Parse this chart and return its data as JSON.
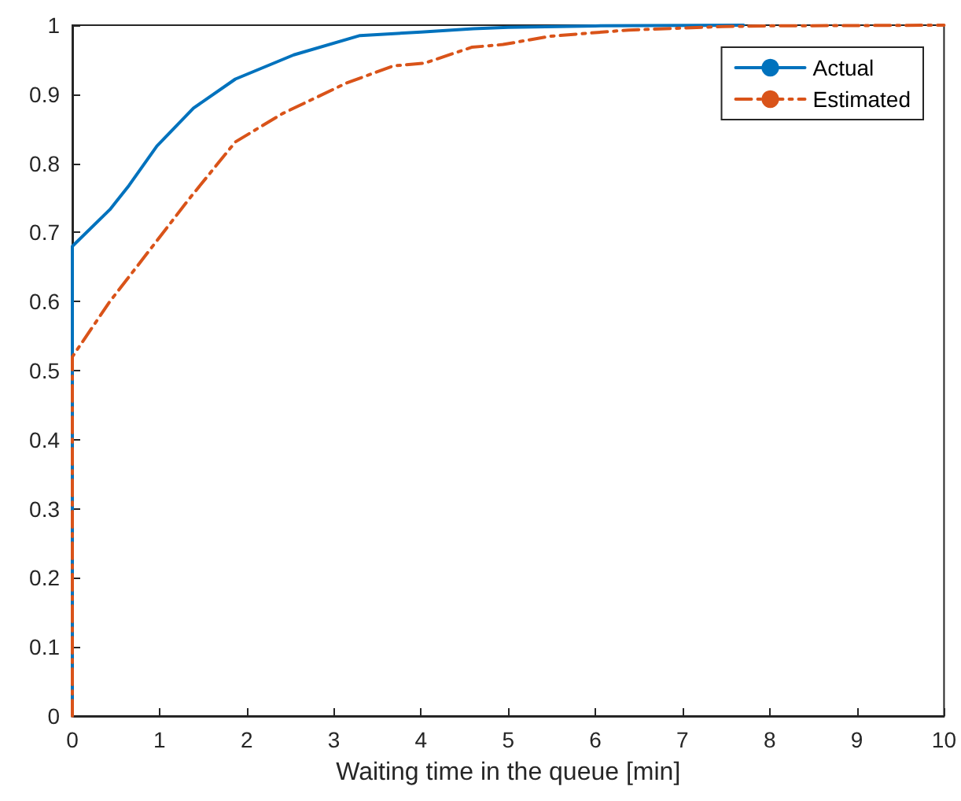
{
  "chart_data": {
    "type": "line",
    "xlabel": "Waiting time in the queue [min]",
    "xlim": [
      0,
      10
    ],
    "xticks": [
      0,
      1,
      2,
      3,
      4,
      5,
      6,
      7,
      8,
      9,
      10
    ],
    "ylim": [
      0,
      1
    ],
    "yticks": [
      0,
      0.1,
      0.2,
      0.3,
      0.4,
      0.5,
      0.6,
      0.7,
      0.8,
      0.9,
      1
    ],
    "grid": false,
    "legend": "top right",
    "marker": "none",
    "series": [
      {
        "name": "Actual",
        "color": "#0072bd",
        "line_style": "solid",
        "x": [
          0,
          0,
          0.43,
          0.65,
          0.97,
          1.39,
          1.87,
          2.54,
          3.3,
          4.0,
          4.6,
          5.0,
          6.0,
          7.7
        ],
        "values": [
          0,
          0.68,
          0.733,
          0.768,
          0.825,
          0.88,
          0.922,
          0.957,
          0.985,
          0.99,
          0.995,
          0.997,
          0.999,
          1
        ]
      },
      {
        "name": "Estimated",
        "color": "#d95319",
        "line_style": "dashed",
        "x": [
          0,
          0,
          0.43,
          0.97,
          1.33,
          1.87,
          2.41,
          3.14,
          3.68,
          4.04,
          4.58,
          4.94,
          5.48,
          6.38,
          7.46,
          8,
          10
        ],
        "values": [
          0,
          0.52,
          0.6,
          0.688,
          0.747,
          0.831,
          0.872,
          0.916,
          0.941,
          0.945,
          0.968,
          0.972,
          0.984,
          0.993,
          0.998,
          0.999,
          1
        ]
      }
    ]
  }
}
